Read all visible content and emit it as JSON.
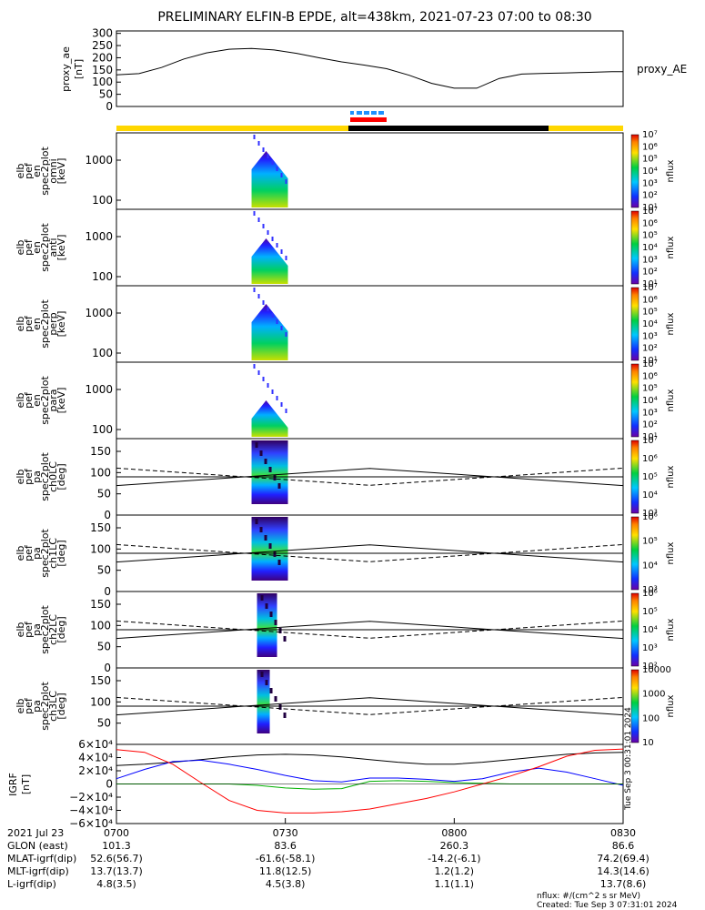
{
  "title": "PRELIMINARY ELFIN-B EPDE, alt=438km, 2021-07-23 07:00 to 08:30",
  "chart_data": {
    "type": "line",
    "title": "PRELIMINARY ELFIN-B EPDE, alt=438km, 2021-07-23 07:00 to 08:30",
    "time_range": [
      "07:00",
      "08:30"
    ],
    "x_ticks": [
      "0700",
      "0730",
      "0800",
      "0830"
    ],
    "proxy_ae": {
      "ylabel": [
        "proxy_ae",
        "[nT]"
      ],
      "legend": "proxy_AE",
      "ylim": [
        0,
        310
      ],
      "yticks": [
        "0",
        "50",
        "100",
        "150",
        "200",
        "250",
        "300"
      ],
      "x_min": [
        0,
        4,
        8,
        12,
        16,
        20,
        24,
        28,
        32,
        36,
        40,
        44,
        48,
        52,
        56,
        60,
        64,
        68,
        72,
        76,
        80,
        84,
        88,
        90
      ],
      "y": [
        130,
        135,
        160,
        195,
        220,
        235,
        238,
        232,
        218,
        200,
        183,
        170,
        155,
        128,
        95,
        75,
        75,
        115,
        133,
        136,
        138,
        140,
        143,
        143
      ]
    },
    "bars": [
      {
        "color": "#ffd700",
        "segment": "before science zone"
      },
      {
        "color": "#000000",
        "segment": "science zone"
      },
      {
        "color": "#ffd700",
        "segment": "after science zone"
      }
    ],
    "markers": {
      "blue_dashes": "#1e90ff",
      "red_bar": "#ff0000"
    },
    "energy_panels": [
      {
        "ylabel": [
          "elb",
          "pef",
          "en",
          "spec2plot",
          "omni",
          "[keV]"
        ],
        "cbar_label": "nflux",
        "cbar_ticks": [
          "10¹",
          "10²",
          "10³",
          "10⁴",
          "10⁵",
          "10⁶",
          "10⁷"
        ],
        "yticks": [
          "100",
          "1000"
        ]
      },
      {
        "ylabel": [
          "elb",
          "pef",
          "en",
          "spec2plot",
          "anti",
          "[keV]"
        ],
        "cbar_label": "nflux",
        "cbar_ticks": [
          "10¹",
          "10²",
          "10³",
          "10⁴",
          "10⁵",
          "10⁶",
          "10⁷"
        ],
        "yticks": [
          "100",
          "1000"
        ]
      },
      {
        "ylabel": [
          "elb",
          "pef",
          "en",
          "spec2plot",
          "perp",
          "[keV]"
        ],
        "cbar_label": "nflux",
        "cbar_ticks": [
          "10¹",
          "10²",
          "10³",
          "10⁴",
          "10⁵",
          "10⁶",
          "10⁷"
        ],
        "yticks": [
          "100",
          "1000"
        ]
      },
      {
        "ylabel": [
          "elb",
          "pef",
          "en",
          "spec2plot",
          "para",
          "[keV]"
        ],
        "cbar_label": "nflux",
        "cbar_ticks": [
          "10¹",
          "10²",
          "10³",
          "10⁴",
          "10⁵",
          "10⁶",
          "10⁷"
        ],
        "yticks": [
          "100",
          "1000"
        ]
      }
    ],
    "pa_panels": [
      {
        "ylabel": [
          "elb",
          "pef",
          "pa",
          "spec2plot",
          "ch0LC",
          "[deg]"
        ],
        "cbar_label": "nflux",
        "cbar_ticks": [
          "10³",
          "10⁴",
          "10⁵",
          "10⁶",
          "10⁷"
        ],
        "yticks": [
          "0",
          "50",
          "100",
          "150"
        ]
      },
      {
        "ylabel": [
          "elb",
          "pef",
          "pa",
          "spec2plot",
          "ch1LC",
          "[deg]"
        ],
        "cbar_label": "nflux",
        "cbar_ticks": [
          "10³",
          "10⁴",
          "10⁵",
          "10⁶"
        ],
        "yticks": [
          "0",
          "50",
          "100",
          "150"
        ]
      },
      {
        "ylabel": [
          "elb",
          "pef",
          "pa",
          "spec2plot",
          "ch2LC",
          "[deg]"
        ],
        "cbar_label": "nflux",
        "cbar_ticks": [
          "10²",
          "10³",
          "10⁴",
          "10⁵",
          "10⁶"
        ],
        "yticks": [
          "0",
          "50",
          "100",
          "150"
        ]
      },
      {
        "ylabel": [
          "elb",
          "pef",
          "pa",
          "spec2plot",
          "ch3LC",
          "[deg]"
        ],
        "cbar_label": "nflux",
        "cbar_ticks": [
          "10",
          "100",
          "1000",
          "10000"
        ],
        "yticks": [
          "50",
          "100",
          "150"
        ]
      }
    ],
    "grf": {
      "ylabel": [
        "IGRF",
        "[nT]"
      ],
      "yticks": [
        "6×10⁴",
        "4×10⁴",
        "2×10⁴",
        "0",
        "−2×10⁴",
        "−4×10⁴",
        "−6×10⁴"
      ],
      "ylim": [
        -60000,
        60000
      ],
      "side_text": "Tue Sep 3 00:31:01 2024",
      "x_min": [
        0,
        5,
        10,
        15,
        20,
        25,
        30,
        35,
        40,
        45,
        50,
        55,
        60,
        65,
        70,
        75,
        80,
        85,
        90
      ],
      "series": [
        {
          "color": "#000000",
          "values": [
            28000,
            30000,
            33000,
            37000,
            41000,
            44000,
            45000,
            44000,
            41000,
            37000,
            33000,
            30000,
            30000,
            33000,
            37000,
            41000,
            45000,
            47000,
            48000
          ]
        },
        {
          "color": "#0000ff",
          "values": [
            8000,
            22000,
            34000,
            36000,
            30000,
            22000,
            13000,
            5000,
            3000,
            9000,
            9000,
            7000,
            4000,
            8000,
            18000,
            24000,
            18000,
            8000,
            -2000
          ]
        },
        {
          "color": "#00b000",
          "values": [
            0,
            0,
            0,
            0,
            0,
            -2000,
            -6000,
            -8000,
            -7000,
            4000,
            5000,
            4000,
            2000,
            1000,
            0,
            0,
            0,
            0,
            0
          ]
        },
        {
          "color": "#ff0000",
          "values": [
            52000,
            48000,
            30000,
            2000,
            -25000,
            -40000,
            -44000,
            -44000,
            -42000,
            -38000,
            -30000,
            -22000,
            -12000,
            0,
            12000,
            26000,
            42000,
            51000,
            53000
          ]
        }
      ]
    },
    "ephemeris": {
      "date": "2021 Jul 23",
      "labels": [
        "GLON (east)",
        "MLAT-igrf(dip)",
        "MLT-igrf(dip)",
        "L-igrf(dip)"
      ],
      "columns": [
        {
          "time": "0700",
          "values": [
            "101.3",
            "52.6(56.7)",
            "13.7(13.7)",
            "4.8(3.5)"
          ]
        },
        {
          "time": "0730",
          "values": [
            "83.6",
            "-61.6(-58.1)",
            "11.8(12.5)",
            "4.5(3.8)"
          ]
        },
        {
          "time": "0800",
          "values": [
            "260.3",
            "-14.2(-6.1)",
            "1.2(1.2)",
            "1.1(1.1)"
          ]
        },
        {
          "time": "0830",
          "values": [
            "86.6",
            "74.2(69.4)",
            "14.3(14.6)",
            "13.7(8.6)"
          ]
        }
      ]
    },
    "footer": [
      "nflux: #/(cm^2 s sr MeV)",
      "Created: Tue Sep  3 07:31:01 2024"
    ]
  }
}
